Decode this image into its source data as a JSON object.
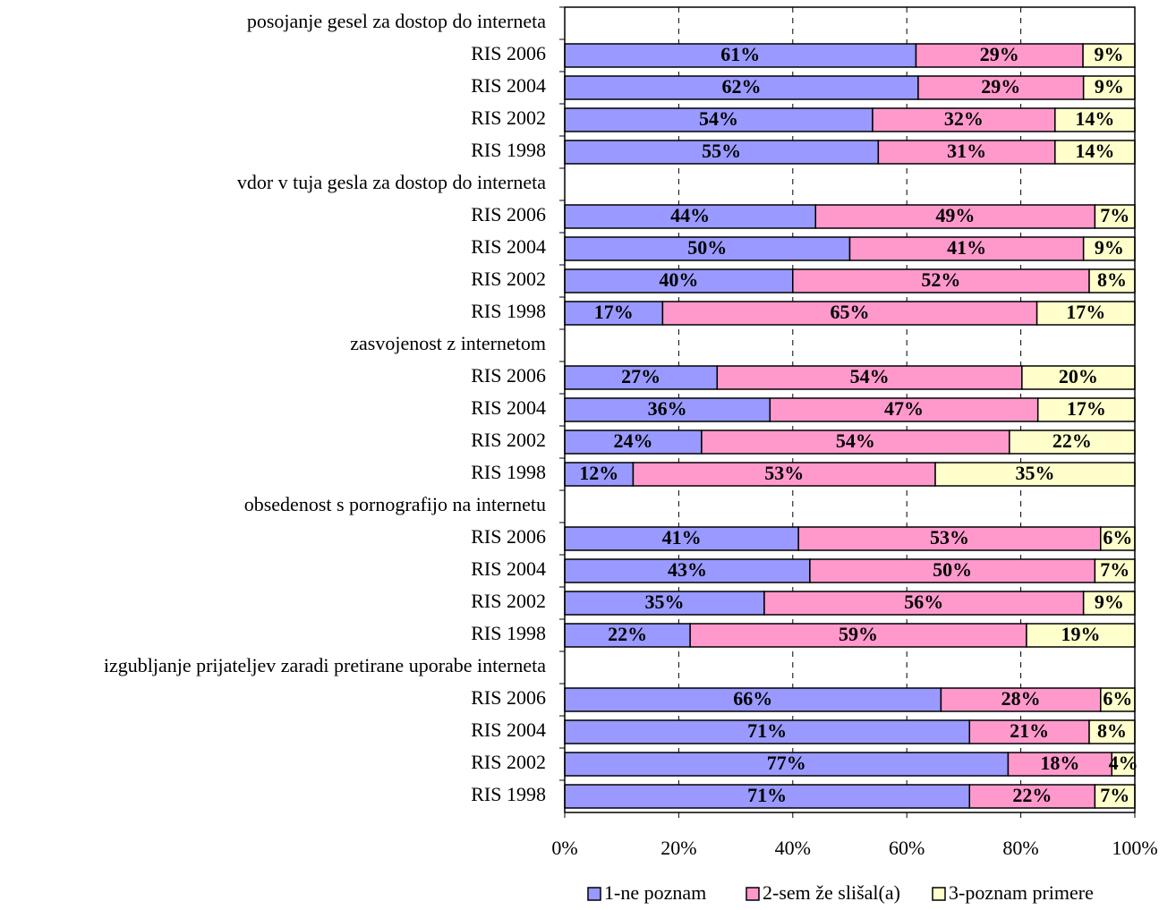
{
  "chart_data": {
    "type": "stacked_barh_percent",
    "categories": [
      "posojanje gesel za dostop do interneta",
      "RIS 2006",
      "RIS 2004",
      "RIS 2002",
      "RIS 1998",
      "vdor v tuja gesla za dostop do interneta",
      "RIS 2006",
      "RIS 2004",
      "RIS 2002",
      "RIS 1998",
      "zasvojenost z internetom",
      "RIS 2006",
      "RIS 2004",
      "RIS 2002",
      "RIS 1998",
      "obsedenost s pornografijo na internetu",
      "RIS 2006",
      "RIS 2004",
      "RIS 2002",
      "RIS 1998",
      "izgubljanje prijateljev zaradi pretirane uporabe interneta",
      "RIS 2006",
      "RIS 2004",
      "RIS 2002",
      "RIS 1998"
    ],
    "series": [
      {
        "name": "1-ne poznam",
        "color": "#9999ff",
        "values": [
          null,
          61,
          62,
          54,
          55,
          null,
          44,
          50,
          40,
          17,
          null,
          27,
          36,
          24,
          12,
          null,
          41,
          43,
          35,
          22,
          null,
          66,
          71,
          77,
          71
        ],
        "value_labels": [
          null,
          "61%",
          "62%",
          "54%",
          "55%",
          null,
          "44%",
          "50%",
          "40%",
          "17%",
          null,
          "27%",
          "36%",
          "24%",
          "12%",
          null,
          "41%",
          "43%",
          "35%",
          "22%",
          null,
          "66%",
          "71%",
          "77%",
          "71%"
        ]
      },
      {
        "name": "2-sem že slišal(a)",
        "color": "#ff99cc",
        "values": [
          null,
          29,
          29,
          32,
          31,
          null,
          49,
          41,
          52,
          65,
          null,
          54,
          47,
          54,
          53,
          null,
          53,
          50,
          56,
          59,
          null,
          28,
          21,
          18,
          22
        ],
        "value_labels": [
          null,
          "29%",
          "29%",
          "32%",
          "31%",
          null,
          "49%",
          "41%",
          "52%",
          "65%",
          null,
          "54%",
          "47%",
          "54%",
          "53%",
          null,
          "53%",
          "50%",
          "56%",
          "59%",
          null,
          "28%",
          "21%",
          "18%",
          "22%"
        ]
      },
      {
        "name": "3-poznam primere",
        "color": "#ffffcc",
        "values": [
          null,
          9,
          9,
          14,
          14,
          null,
          7,
          9,
          8,
          17,
          null,
          20,
          17,
          22,
          35,
          null,
          6,
          7,
          9,
          19,
          null,
          6,
          8,
          4,
          7
        ],
        "value_labels": [
          null,
          "9%",
          "9%",
          "14%",
          "14%",
          null,
          "7%",
          "9%",
          "8%",
          "17%",
          null,
          "20%",
          "17%",
          "22%",
          "35%",
          null,
          "6%",
          "7%",
          "9%",
          "19%",
          null,
          "6%",
          "8%",
          "4%",
          "7%"
        ]
      }
    ],
    "xlim": [
      0,
      100
    ],
    "xticks": [
      {
        "value": 0,
        "label": "0%"
      },
      {
        "value": 20,
        "label": "20%"
      },
      {
        "value": 40,
        "label": "40%"
      },
      {
        "value": 60,
        "label": "60%"
      },
      {
        "value": 80,
        "label": "80%"
      },
      {
        "value": 100,
        "label": "100%"
      }
    ],
    "grid": true,
    "legend": "bottom-right"
  }
}
